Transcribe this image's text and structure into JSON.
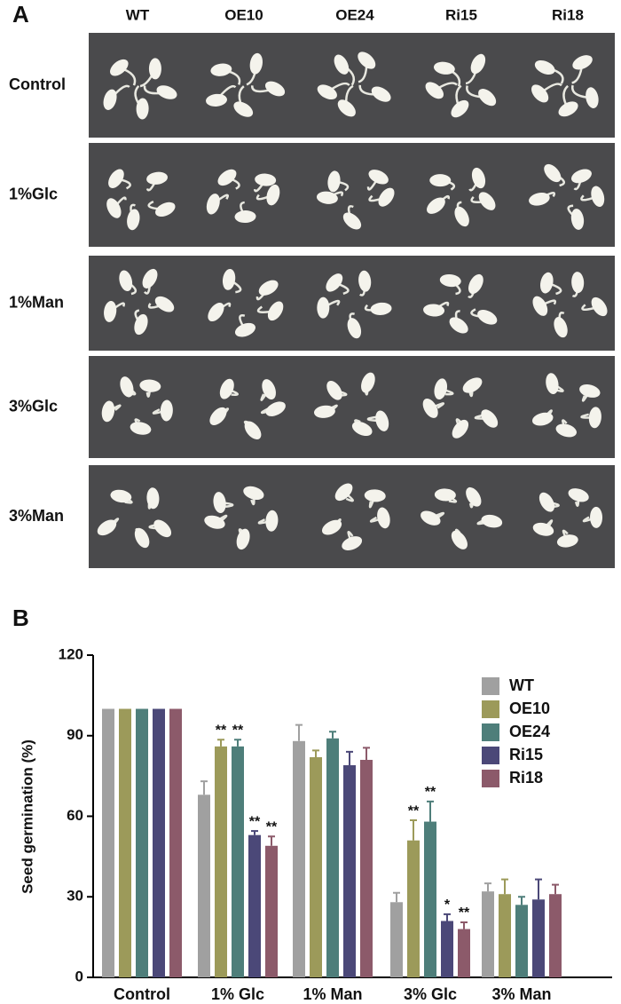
{
  "panel_a": {
    "letter": "A",
    "columns": [
      "WT",
      "OE10",
      "OE24",
      "Ri15",
      "Ri18"
    ],
    "rows": [
      "Control",
      "1%Glc",
      "1%Man",
      "3%Glc",
      "3%Man"
    ]
  },
  "chart_data": {
    "type": "bar",
    "letter": "B",
    "y_label": "Seed germination (%)",
    "categories": [
      "Control",
      "1% Glc",
      "1% Man",
      "3% Glc",
      "3% Man"
    ],
    "series": [
      {
        "name": "WT",
        "color": "#a0a0a0",
        "values": [
          100,
          68,
          88,
          28,
          32
        ],
        "errors": [
          null,
          5,
          6,
          3.5,
          3
        ],
        "annotations": [
          null,
          null,
          null,
          null,
          null
        ]
      },
      {
        "name": "OE10",
        "color": "#9c9a5a",
        "values": [
          100,
          86,
          82,
          51,
          31
        ],
        "errors": [
          null,
          2.5,
          2.5,
          7.5,
          5.5
        ],
        "annotations": [
          null,
          "**",
          null,
          "**",
          null
        ]
      },
      {
        "name": "OE24",
        "color": "#4e7e7a",
        "values": [
          100,
          86,
          89,
          58,
          27
        ],
        "errors": [
          null,
          2.5,
          2.5,
          7.5,
          3
        ],
        "annotations": [
          null,
          "**",
          null,
          "**",
          null
        ]
      },
      {
        "name": "Ri15",
        "color": "#4b4878",
        "values": [
          100,
          53,
          79,
          21,
          29
        ],
        "errors": [
          null,
          1.5,
          5,
          2.5,
          7.5
        ],
        "annotations": [
          null,
          "**",
          null,
          "*",
          null
        ]
      },
      {
        "name": "Ri18",
        "color": "#8c5a6a",
        "values": [
          100,
          49,
          81,
          18,
          31
        ],
        "errors": [
          null,
          3.5,
          4.5,
          2.5,
          3.5
        ],
        "annotations": [
          null,
          "**",
          null,
          "**",
          null
        ]
      }
    ],
    "ylim": [
      0,
      120
    ],
    "yticks": [
      0,
      30,
      60,
      90,
      120
    ],
    "grid": false,
    "legend": "top-right"
  }
}
